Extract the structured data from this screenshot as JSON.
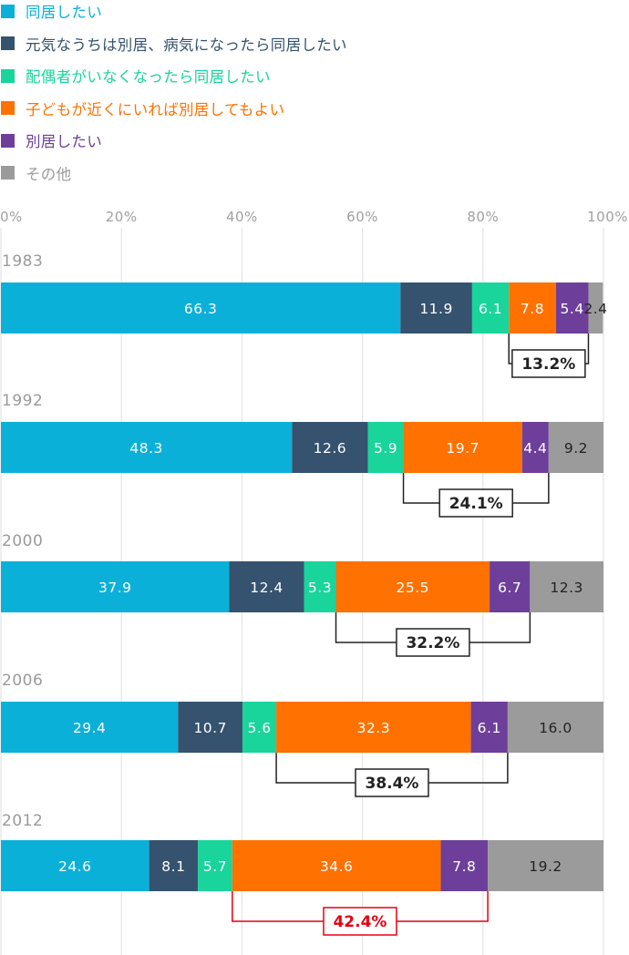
{
  "legend": [
    {
      "name": "同居したい",
      "color": "#0bb0d9"
    },
    {
      "name": "元気なうちは別居、病気になったら同居したい",
      "color": "#35536e"
    },
    {
      "name": "配偶者がいなくなったら同居したい",
      "color": "#19d49b"
    },
    {
      "name": "子どもが近くにいれば別居してもよい",
      "color": "#ff7100"
    },
    {
      "name": "別居したい",
      "color": "#6d3f9a"
    },
    {
      "name": "その他",
      "color": "#9b9b9b"
    }
  ],
  "chart_data": {
    "type": "bar",
    "orientation": "horizontal",
    "stacked": true,
    "xlim": [
      0,
      100
    ],
    "x_ticks": [
      "0%",
      "20%",
      "40%",
      "60%",
      "80%",
      "100%"
    ],
    "grid": true,
    "legend_position": "top-left",
    "categories": [
      "1983",
      "1992",
      "2000",
      "2006",
      "2012"
    ],
    "series": [
      {
        "name": "同居したい",
        "color": "#0bb0d9",
        "label_color": "#ffffff",
        "values": [
          66.3,
          48.3,
          37.9,
          29.4,
          24.6
        ],
        "labels": [
          "66.3",
          "48.3",
          "37.9",
          "29.4",
          "24.6"
        ]
      },
      {
        "name": "元気なうちは別居、病気になったら同居したい",
        "color": "#35536e",
        "label_color": "#ffffff",
        "values": [
          11.9,
          12.6,
          12.4,
          10.7,
          8.1
        ],
        "labels": [
          "11.9",
          "12.6",
          "12.4",
          "10.7",
          "8.1"
        ]
      },
      {
        "name": "配偶者がいなくなったら同居したい",
        "color": "#19d49b",
        "label_color": "#ffffff",
        "values": [
          6.1,
          5.9,
          5.3,
          5.6,
          5.7
        ],
        "labels": [
          "6.1",
          "5.9",
          "5.3",
          "5.6",
          "5.7"
        ]
      },
      {
        "name": "子どもが近くにいれば別居してもよい",
        "color": "#ff7100",
        "label_color": "#ffffff",
        "values": [
          7.8,
          19.7,
          25.5,
          32.3,
          34.6
        ],
        "labels": [
          "7.8",
          "19.7",
          "25.5",
          "32.3",
          "34.6"
        ]
      },
      {
        "name": "別居したい",
        "color": "#6d3f9a",
        "label_color": "#ffffff",
        "values": [
          5.4,
          4.4,
          6.7,
          6.1,
          7.8
        ],
        "labels": [
          "5.4",
          "4.4",
          "6.7",
          "6.1",
          "7.8"
        ]
      },
      {
        "name": "その他",
        "color": "#9b9b9b",
        "label_color": "#222222",
        "values": [
          2.4,
          9.2,
          12.3,
          16.0,
          19.2
        ],
        "labels": [
          "2.4",
          "9.2",
          "12.3",
          "16.0",
          "19.2"
        ]
      }
    ],
    "annotations": [
      {
        "category": "1983",
        "text": "13.2%",
        "span_series": [
          3,
          4
        ],
        "color": "#222222"
      },
      {
        "category": "1992",
        "text": "24.1%",
        "span_series": [
          3,
          4
        ],
        "color": "#222222"
      },
      {
        "category": "2000",
        "text": "32.2%",
        "span_series": [
          3,
          4
        ],
        "color": "#222222"
      },
      {
        "category": "2006",
        "text": "38.4%",
        "span_series": [
          3,
          4
        ],
        "color": "#222222"
      },
      {
        "category": "2012",
        "text": "42.4%",
        "span_series": [
          3,
          4
        ],
        "color": "#e60012"
      }
    ]
  }
}
